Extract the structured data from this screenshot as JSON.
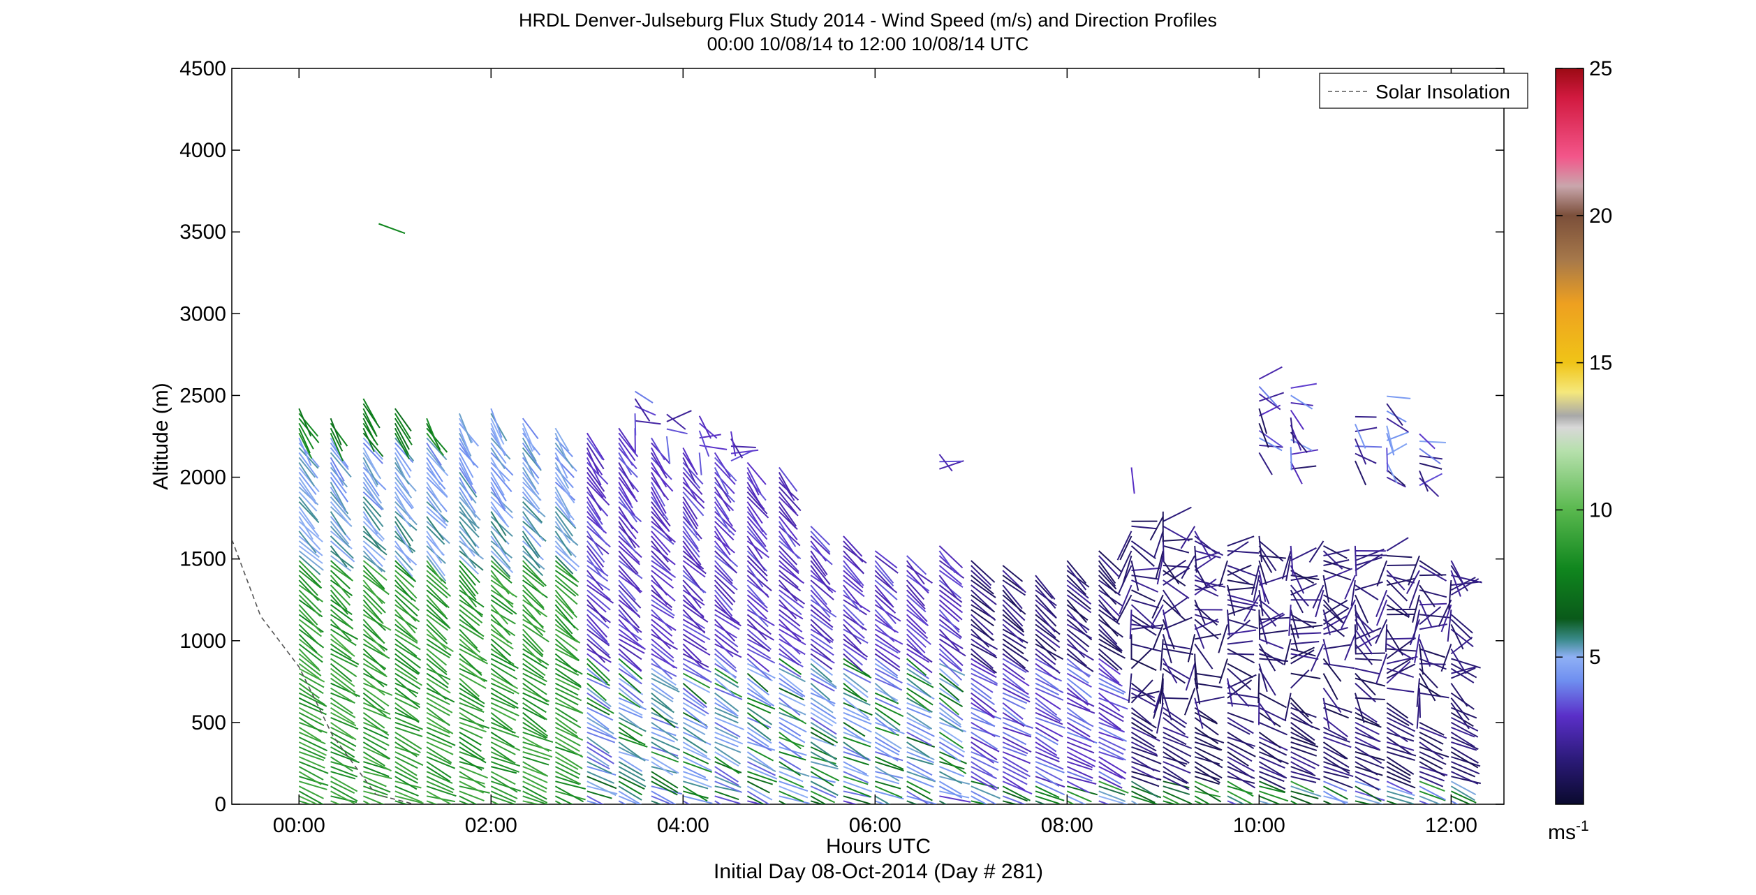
{
  "chart_data": {
    "type": "wind-barb-profile",
    "title": "HRDL Denver-Julseburg Flux Study 2014 - Wind Speed (m/s) and Direction Profiles",
    "subtitle": "00:00 10/08/14 to 12:00 10/08/14  UTC",
    "xlabel": "Hours UTC",
    "xlabel2": "Initial Day 08-Oct-2014 (Day # 281)",
    "ylabel": "Altitude (m)",
    "xlim_hours": [
      -0.7,
      12.55
    ],
    "ylim": [
      0,
      4500
    ],
    "x_ticks": [
      {
        "value": 0,
        "label": "00:00"
      },
      {
        "value": 2,
        "label": "02:00"
      },
      {
        "value": 4,
        "label": "04:00"
      },
      {
        "value": 6,
        "label": "06:00"
      },
      {
        "value": 8,
        "label": "08:00"
      },
      {
        "value": 10,
        "label": "10:00"
      },
      {
        "value": 12,
        "label": "12:00"
      }
    ],
    "y_ticks": [
      0,
      500,
      1000,
      1500,
      2000,
      2500,
      3000,
      3500,
      4000,
      4500
    ],
    "y_tick_labels": [
      "0",
      "500",
      "1000",
      "1500",
      "2000",
      "2500",
      "3000",
      "3500",
      "4000",
      "4500"
    ],
    "legend": {
      "label": "Solar Insolation",
      "style": "dashed",
      "placement": "top-right"
    },
    "solar_insolation": [
      [
        -0.7,
        1620
      ],
      [
        -0.4,
        1150
      ],
      [
        0,
        840
      ],
      [
        0.35,
        420
      ],
      [
        0.8,
        60
      ],
      [
        1.2,
        0
      ]
    ],
    "colorbar": {
      "unit": "ms",
      "unit_exponent": "-1",
      "range": [
        0,
        25
      ],
      "ticks": [
        5,
        10,
        15,
        20,
        25
      ],
      "tick_labels": [
        "5",
        "10",
        "15",
        "20",
        "25"
      ],
      "stops": [
        {
          "v": 0,
          "c": "#0a0a2e"
        },
        {
          "v": 1.5,
          "c": "#2b1a78"
        },
        {
          "v": 3,
          "c": "#5a2fc8"
        },
        {
          "v": 4.2,
          "c": "#6f8ff0"
        },
        {
          "v": 5,
          "c": "#8fb0f5"
        },
        {
          "v": 5.6,
          "c": "#3a8a8a"
        },
        {
          "v": 6.3,
          "c": "#0a5a1a"
        },
        {
          "v": 8,
          "c": "#10861e"
        },
        {
          "v": 10,
          "c": "#59b84e"
        },
        {
          "v": 12,
          "c": "#b6e0ac"
        },
        {
          "v": 12.8,
          "c": "#d8d8d8"
        },
        {
          "v": 13.2,
          "c": "#a8a8a8"
        },
        {
          "v": 14,
          "c": "#f5e87c"
        },
        {
          "v": 15,
          "c": "#f0c417"
        },
        {
          "v": 17,
          "c": "#eea020"
        },
        {
          "v": 18.5,
          "c": "#a6784a"
        },
        {
          "v": 20,
          "c": "#7b4f3a"
        },
        {
          "v": 21,
          "c": "#c9a6ac"
        },
        {
          "v": 22,
          "c": "#f3568a"
        },
        {
          "v": 24,
          "c": "#d21a40"
        },
        {
          "v": 25,
          "c": "#9b0a14"
        }
      ]
    },
    "profile_times_hours": [
      0,
      0.33,
      0.67,
      1.0,
      1.33,
      1.67,
      2.0,
      2.33,
      2.67,
      3.0,
      3.33,
      3.67,
      4.0,
      4.33,
      4.67,
      5.0,
      5.33,
      5.67,
      6.0,
      6.33,
      6.67,
      7.0,
      7.33,
      7.67,
      8.0,
      8.33,
      8.67,
      9.0,
      9.33,
      9.67,
      10.0,
      10.33,
      10.67,
      11.0,
      11.33,
      11.67,
      12.0
    ],
    "profile_top_m": [
      2420,
      2360,
      2480,
      2440,
      2380,
      2400,
      2420,
      2380,
      2320,
      2280,
      2300,
      2250,
      2200,
      2150,
      2100,
      2080,
      1700,
      1650,
      1550,
      1520,
      1600,
      1500,
      1460,
      1420,
      1500,
      1550,
      1750,
      1800,
      1700,
      1600,
      1650,
      1600,
      1620,
      1580,
      1550,
      1520,
      1500
    ],
    "sparse_upper_profiles": [
      {
        "t": 3.5,
        "z": [
          2300,
          2550
        ]
      },
      {
        "t": 3.83,
        "z": [
          2250,
          2400
        ]
      },
      {
        "t": 4.17,
        "z": [
          2150,
          2380
        ]
      },
      {
        "t": 4.5,
        "z": [
          2100,
          2300
        ]
      },
      {
        "t": 6.67,
        "z": [
          2050,
          2180
        ]
      },
      {
        "t": 8.67,
        "z": [
          2060,
          2100
        ]
      },
      {
        "t": 10.0,
        "z": [
          2150,
          2600
        ]
      },
      {
        "t": 10.33,
        "z": [
          2050,
          2550
        ]
      },
      {
        "t": 11.0,
        "z": [
          2100,
          2400
        ]
      },
      {
        "t": 11.33,
        "z": [
          2000,
          2500
        ]
      },
      {
        "t": 11.67,
        "z": [
          1950,
          2300
        ]
      }
    ],
    "isolated_barb": {
      "t": 0.83,
      "z": 3550,
      "speed": 8
    }
  }
}
